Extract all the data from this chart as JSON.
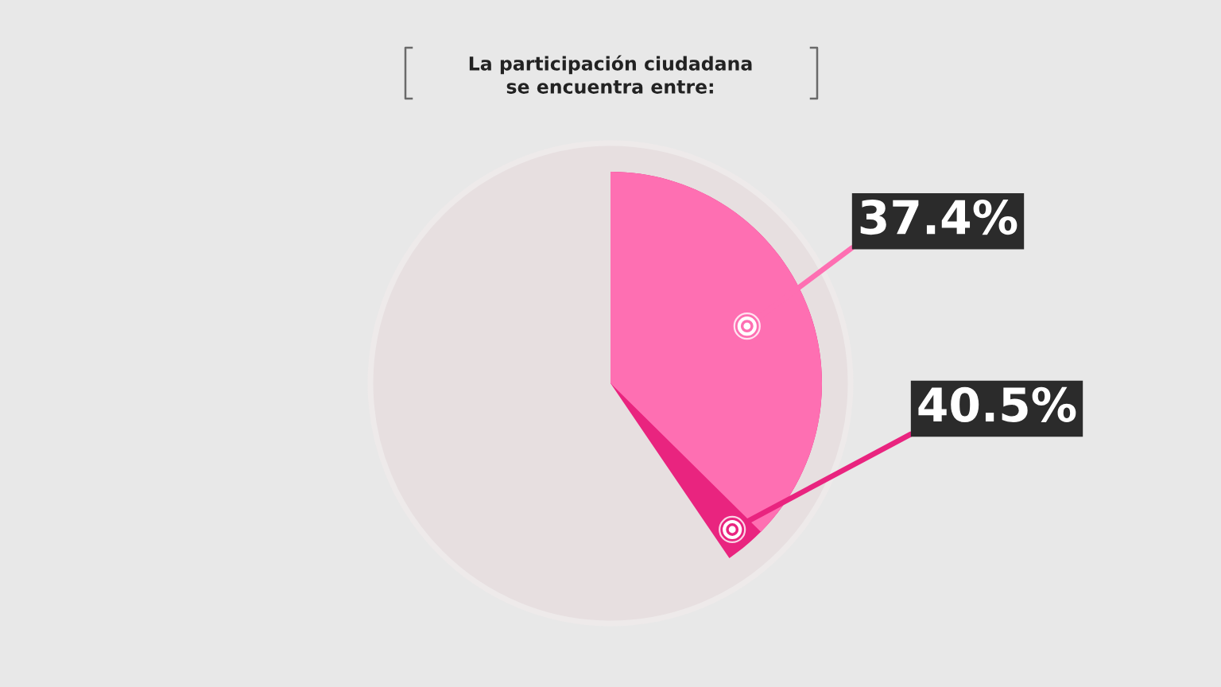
{
  "chart_data": {
    "type": "pie",
    "title": "La participación ciudadana\nse encuentra entre:",
    "categories": [
      null,
      null
    ],
    "values": [
      37.4,
      40.5
    ],
    "colors": [
      "#fe6fb2",
      "#e9247f"
    ],
    "value_labels": [
      "37.4%",
      "40.5%"
    ]
  }
}
